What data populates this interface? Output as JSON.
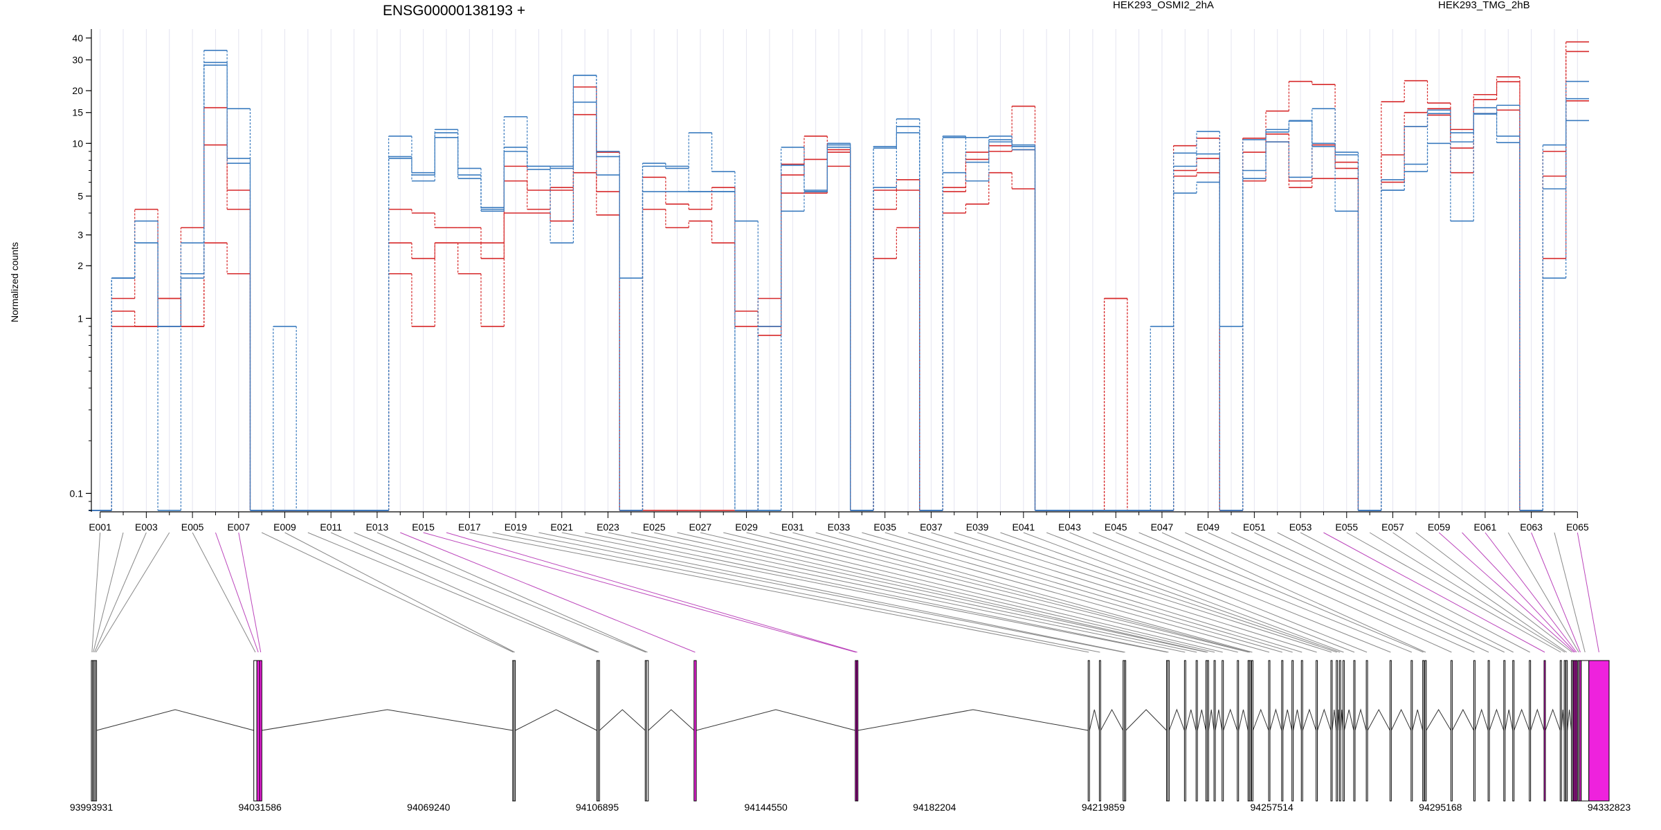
{
  "chart_data": {
    "type": "line",
    "title": "ENSG00000138193 +",
    "ylabel": "Normalized counts",
    "yscale": "log",
    "ylim": [
      0.075,
      45
    ],
    "yticks": [
      "0.1",
      "1",
      "2",
      "3",
      "5",
      "10",
      "15",
      "20",
      "30",
      "40"
    ],
    "ytick_values": [
      0.1,
      1,
      2,
      3,
      5,
      10,
      15,
      20,
      30,
      40
    ],
    "grid": "vertical-per-exon",
    "legend_position": "top",
    "categories": [
      "E001",
      "E002",
      "E003",
      "E004",
      "E005",
      "E006",
      "E007",
      "E008",
      "E009",
      "E010",
      "E011",
      "E012",
      "E013",
      "E014",
      "E015",
      "E016",
      "E017",
      "E018",
      "E019",
      "E020",
      "E021",
      "E022",
      "E023",
      "E024",
      "E025",
      "E026",
      "E027",
      "E028",
      "E029",
      "E030",
      "E031",
      "E032",
      "E033",
      "E034",
      "E035",
      "E036",
      "E037",
      "E038",
      "E039",
      "E040",
      "E041",
      "E042",
      "E043",
      "E044",
      "E045",
      "E046",
      "E047",
      "E048",
      "E049",
      "E050",
      "E051",
      "E052",
      "E053",
      "E054",
      "E055",
      "E056",
      "E057",
      "E058",
      "E059",
      "E060",
      "E061",
      "E062",
      "E063",
      "E064",
      "E065"
    ],
    "xtick_labels": [
      "E001",
      "E003",
      "E005",
      "E007",
      "E009",
      "E011",
      "E013",
      "E015",
      "E017",
      "E019",
      "E021",
      "E023",
      "E025",
      "E027",
      "E029",
      "E031",
      "E033",
      "E035",
      "E037",
      "E039",
      "E041",
      "E043",
      "E045",
      "E047",
      "E049",
      "E051",
      "E053",
      "E055",
      "E057",
      "E059",
      "E061",
      "E063",
      "E065"
    ],
    "series": [
      {
        "group": "HEK293_OSMI2_2hA",
        "color": "#d62728",
        "values": [
          0.08,
          0.9,
          0.9,
          0.9,
          0.9,
          2.7,
          1.8,
          0.08,
          0.08,
          0.08,
          0.08,
          0.08,
          0.08,
          1.8,
          0.9,
          2.7,
          1.8,
          0.9,
          4.0,
          4.0,
          3.6,
          6.8,
          3.9,
          0.08,
          0.08,
          0.08,
          0.08,
          0.08,
          0.08,
          1.3,
          5.2,
          5.2,
          7.4,
          0.08,
          2.2,
          3.3,
          0.08,
          4.0,
          4.5,
          6.8,
          5.5,
          0.08,
          0.08,
          0.08,
          0.08,
          0.08,
          0.08,
          6.5,
          6.8,
          0.08,
          6.1,
          10.2,
          5.6,
          6.3,
          6.3,
          0.08,
          6.0,
          12.5,
          14.5,
          6.8,
          14.8,
          15.5,
          0.08,
          2.2,
          17.5
        ]
      },
      {
        "group": "HEK293_OSMI2_2hA",
        "color": "#d62728",
        "values": [
          0.08,
          1.1,
          0.9,
          1.3,
          0.9,
          9.8,
          4.2,
          0.08,
          0.08,
          0.08,
          0.08,
          0.08,
          0.08,
          2.7,
          2.2,
          2.7,
          2.7,
          2.2,
          6.1,
          4.2,
          5.4,
          14.6,
          5.3,
          0.08,
          4.2,
          3.3,
          3.6,
          2.7,
          1.1,
          0.8,
          6.6,
          8.1,
          8.9,
          0.08,
          4.2,
          5.4,
          0.08,
          5.3,
          8.1,
          9.0,
          9.2,
          0.08,
          0.08,
          0.08,
          1.3,
          0.08,
          0.08,
          7.0,
          8.2,
          0.08,
          8.9,
          11.3,
          6.1,
          9.8,
          7.2,
          0.08,
          8.6,
          15.0,
          15.8,
          9.4,
          17.8,
          22.5,
          0.08,
          6.5,
          33.5
        ]
      },
      {
        "group": "HEK293_OSMI2_2hA",
        "color": "#d62728",
        "values": [
          0.08,
          1.3,
          4.2,
          1.3,
          3.3,
          16.0,
          5.4,
          0.08,
          0.08,
          0.08,
          0.08,
          0.08,
          0.08,
          4.2,
          4.0,
          3.3,
          3.3,
          2.7,
          7.4,
          5.4,
          5.6,
          21.0,
          8.9,
          0.08,
          6.4,
          4.5,
          4.2,
          5.6,
          0.9,
          0.9,
          7.6,
          11.0,
          9.2,
          0.08,
          5.4,
          6.2,
          0.08,
          5.6,
          8.9,
          9.7,
          16.3,
          0.08,
          0.08,
          0.08,
          1.3,
          0.08,
          0.08,
          9.7,
          10.7,
          0.08,
          10.7,
          15.3,
          22.6,
          21.7,
          7.8,
          0.08,
          17.3,
          22.8,
          17.0,
          12.0,
          19.0,
          24.0,
          0.08,
          9.0,
          38.0
        ]
      },
      {
        "group": "HEK293_TMG_2hB",
        "color": "#3a7bbf",
        "values": [
          0.08,
          1.7,
          2.7,
          0.08,
          1.7,
          28.0,
          15.8,
          0.08,
          0.9,
          0.08,
          0.08,
          0.08,
          0.08,
          8.4,
          6.1,
          10.8,
          6.3,
          4.1,
          9.5,
          7.4,
          2.7,
          24.5,
          8.4,
          1.7,
          7.4,
          7.4,
          5.3,
          5.3,
          3.6,
          0.08,
          4.1,
          5.3,
          9.8,
          0.08,
          9.4,
          13.8,
          0.08,
          6.8,
          6.1,
          10.2,
          9.6,
          0.08,
          0.08,
          0.08,
          0.08,
          0.08,
          0.9,
          5.2,
          6.0,
          0.08,
          6.3,
          11.6,
          13.5,
          9.6,
          4.1,
          0.08,
          5.4,
          7.6,
          10.0,
          3.6,
          14.8,
          10.1,
          0.08,
          1.7,
          13.5
        ]
      },
      {
        "group": "HEK293_TMG_2hB",
        "color": "#3a7bbf",
        "values": [
          0.08,
          1.7,
          2.7,
          0.9,
          2.7,
          29.0,
          7.7,
          0.08,
          0.08,
          0.08,
          0.08,
          0.08,
          0.08,
          8.2,
          6.8,
          11.5,
          6.6,
          4.3,
          14.2,
          7.4,
          7.4,
          17.2,
          6.6,
          0.08,
          5.3,
          5.3,
          5.3,
          5.3,
          0.08,
          0.9,
          7.5,
          5.4,
          9.5,
          0.08,
          5.6,
          11.5,
          0.08,
          10.8,
          7.8,
          10.5,
          9.2,
          0.08,
          0.08,
          0.08,
          0.08,
          0.08,
          0.08,
          7.4,
          11.7,
          0.9,
          7.0,
          10.2,
          6.4,
          15.8,
          8.9,
          0.08,
          6.2,
          6.9,
          15.5,
          10.2,
          16.0,
          11.0,
          0.08,
          5.5,
          22.6
        ]
      },
      {
        "group": "HEK293_TMG_2hB",
        "color": "#3a7bbf",
        "values": [
          0.08,
          1.7,
          3.6,
          0.9,
          1.8,
          34.0,
          8.2,
          0.08,
          0.08,
          0.08,
          0.08,
          0.08,
          0.08,
          11.0,
          6.6,
          12.0,
          7.2,
          4.2,
          9.0,
          7.1,
          7.2,
          24.5,
          9.0,
          0.08,
          7.7,
          7.2,
          11.5,
          6.9,
          0.08,
          0.08,
          9.5,
          5.3,
          10.0,
          0.08,
          9.6,
          12.5,
          0.08,
          11.0,
          10.8,
          11.0,
          9.8,
          0.08,
          0.08,
          0.08,
          0.08,
          0.08,
          0.08,
          8.8,
          8.7,
          0.08,
          10.5,
          12.0,
          13.4,
          10.0,
          8.6,
          0.08,
          5.4,
          12.5,
          14.8,
          11.5,
          14.7,
          16.5,
          0.08,
          9.8,
          18.0
        ]
      }
    ],
    "legend": [
      {
        "label": "HEK293_OSMI2_2hA",
        "color": "#d62728"
      },
      {
        "label": "HEK293_TMG_2hB",
        "color": "#3a7bbf"
      }
    ],
    "gene_model": {
      "coord_start": 93993931,
      "coord_end": 94332823,
      "coord_labels": [
        "93993931",
        "94031586",
        "94069240",
        "94106895",
        "94144550",
        "94182204",
        "94219859",
        "94257514",
        "94295168",
        "94332823"
      ],
      "highlight_color": "#ee22dd",
      "link_color_default": "#888888",
      "link_color_highlight": "#bb44bb",
      "exons": [
        {
          "start": 93993931,
          "end": 93994200,
          "highlight": false
        },
        {
          "start": 93994200,
          "end": 93994500,
          "highlight": false
        },
        {
          "start": 93994500,
          "end": 93994800,
          "highlight": false
        },
        {
          "start": 93994800,
          "end": 93995100,
          "highlight": false
        },
        {
          "start": 94030200,
          "end": 94030900,
          "highlight": false
        },
        {
          "start": 94030900,
          "end": 94031500,
          "highlight": true
        },
        {
          "start": 94031500,
          "end": 94032000,
          "highlight": true
        },
        {
          "start": 94088000,
          "end": 94088300,
          "highlight": false
        },
        {
          "start": 94088300,
          "end": 94088600,
          "highlight": false
        },
        {
          "start": 94106800,
          "end": 94107100,
          "highlight": false
        },
        {
          "start": 94107100,
          "end": 94107400,
          "highlight": false
        },
        {
          "start": 94117600,
          "end": 94117900,
          "highlight": false
        },
        {
          "start": 94117900,
          "end": 94118300,
          "highlight": false
        },
        {
          "start": 94128500,
          "end": 94129000,
          "highlight": true
        },
        {
          "start": 94164500,
          "end": 94164800,
          "highlight": true
        },
        {
          "start": 94164800,
          "end": 94165100,
          "highlight": true
        },
        {
          "start": 94216500,
          "end": 94216800,
          "highlight": false
        },
        {
          "start": 94219000,
          "end": 94219300,
          "highlight": false
        },
        {
          "start": 94224300,
          "end": 94224600,
          "highlight": false
        },
        {
          "start": 94224600,
          "end": 94224900,
          "highlight": false
        },
        {
          "start": 94234000,
          "end": 94234300,
          "highlight": false
        },
        {
          "start": 94234300,
          "end": 94234600,
          "highlight": false
        },
        {
          "start": 94238000,
          "end": 94238300,
          "highlight": false
        },
        {
          "start": 94240600,
          "end": 94240900,
          "highlight": false
        },
        {
          "start": 94242800,
          "end": 94243100,
          "highlight": false
        },
        {
          "start": 94243100,
          "end": 94243400,
          "highlight": false
        },
        {
          "start": 94244600,
          "end": 94244900,
          "highlight": false
        },
        {
          "start": 94246400,
          "end": 94246700,
          "highlight": false
        },
        {
          "start": 94249800,
          "end": 94250100,
          "highlight": false
        },
        {
          "start": 94252200,
          "end": 94252500,
          "highlight": false
        },
        {
          "start": 94252500,
          "end": 94252800,
          "highlight": false
        },
        {
          "start": 94253000,
          "end": 94253300,
          "highlight": false
        },
        {
          "start": 94256800,
          "end": 94257100,
          "highlight": false
        },
        {
          "start": 94259700,
          "end": 94260000,
          "highlight": false
        },
        {
          "start": 94262000,
          "end": 94262300,
          "highlight": false
        },
        {
          "start": 94264100,
          "end": 94264400,
          "highlight": false
        },
        {
          "start": 94267400,
          "end": 94267700,
          "highlight": false
        },
        {
          "start": 94270700,
          "end": 94271000,
          "highlight": false
        },
        {
          "start": 94271900,
          "end": 94272200,
          "highlight": false
        },
        {
          "start": 94272600,
          "end": 94272900,
          "highlight": false
        },
        {
          "start": 94273400,
          "end": 94273700,
          "highlight": false
        },
        {
          "start": 94275800,
          "end": 94276100,
          "highlight": false
        },
        {
          "start": 94278600,
          "end": 94278900,
          "highlight": false
        },
        {
          "start": 94283900,
          "end": 94284200,
          "highlight": false
        },
        {
          "start": 94288600,
          "end": 94288900,
          "highlight": false
        },
        {
          "start": 94291200,
          "end": 94291500,
          "highlight": false
        },
        {
          "start": 94291700,
          "end": 94292000,
          "highlight": false
        },
        {
          "start": 94297500,
          "end": 94297800,
          "highlight": false
        },
        {
          "start": 94302600,
          "end": 94302900,
          "highlight": false
        },
        {
          "start": 94305800,
          "end": 94306100,
          "highlight": false
        },
        {
          "start": 94309300,
          "end": 94309600,
          "highlight": false
        },
        {
          "start": 94311300,
          "end": 94311600,
          "highlight": false
        },
        {
          "start": 94315000,
          "end": 94315300,
          "highlight": false
        },
        {
          "start": 94318300,
          "end": 94318600,
          "highlight": true
        },
        {
          "start": 94321900,
          "end": 94322200,
          "highlight": false
        },
        {
          "start": 94322800,
          "end": 94323100,
          "highlight": false
        },
        {
          "start": 94323200,
          "end": 94323500,
          "highlight": false
        },
        {
          "start": 94324400,
          "end": 94324700,
          "highlight": false
        },
        {
          "start": 94324800,
          "end": 94325100,
          "highlight": true
        },
        {
          "start": 94325100,
          "end": 94325400,
          "highlight": true
        },
        {
          "start": 94325400,
          "end": 94325700,
          "highlight": true
        },
        {
          "start": 94325900,
          "end": 94326200,
          "highlight": false
        },
        {
          "start": 94326200,
          "end": 94326600,
          "highlight": true
        },
        {
          "start": 94326600,
          "end": 94328300,
          "highlight": false
        },
        {
          "start": 94328300,
          "end": 94332823,
          "highlight": true
        }
      ]
    }
  }
}
